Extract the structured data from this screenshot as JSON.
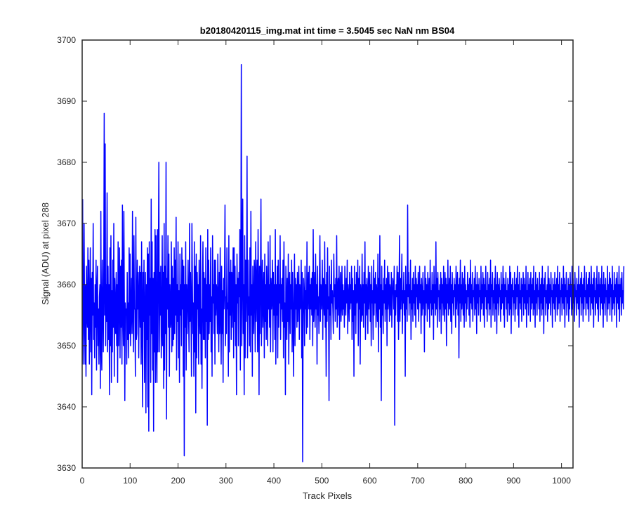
{
  "chart_data": {
    "type": "line",
    "title": "b20180420115_img.mat int time = 3.5045 sec  NaN nm BS04",
    "xlabel": "Track Pixels",
    "ylabel": "Signal (ADU) at pixel 288",
    "xlim": [
      0,
      1024
    ],
    "ylim": [
      3630,
      3700
    ],
    "xticks": [
      0,
      100,
      200,
      300,
      400,
      500,
      600,
      700,
      800,
      900,
      1000
    ],
    "yticks": [
      3630,
      3640,
      3650,
      3660,
      3670,
      3680,
      3690,
      3700
    ],
    "grid": false,
    "legend": "none",
    "series": [
      {
        "color": "#0000ff",
        "x_start": 1,
        "x_step": 1,
        "values": [
          3674,
          3647,
          3652,
          3670,
          3656,
          3647,
          3660,
          3645,
          3663,
          3655,
          3653,
          3666,
          3651,
          3664,
          3647,
          3656,
          3666,
          3649,
          3661,
          3642,
          3662,
          3655,
          3670,
          3651,
          3657,
          3648,
          3660,
          3653,
          3664,
          3646,
          3659,
          3663,
          3650,
          3656,
          3647,
          3658,
          3660,
          3643,
          3672,
          3650,
          3646,
          3664,
          3658,
          3649,
          3660,
          3688,
          3655,
          3683,
          3650,
          3660,
          3654,
          3675,
          3649,
          3663,
          3651,
          3660,
          3642,
          3666,
          3650,
          3668,
          3644,
          3659,
          3649,
          3664,
          3653,
          3670,
          3645,
          3661,
          3656,
          3652,
          3662,
          3650,
          3660,
          3644,
          3667,
          3650,
          3658,
          3666,
          3648,
          3663,
          3653,
          3664,
          3647,
          3673,
          3656,
          3650,
          3672,
          3658,
          3641,
          3657,
          3655,
          3656,
          3647,
          3662,
          3651,
          3657,
          3648,
          3666,
          3652,
          3665,
          3650,
          3656,
          3661,
          3652,
          3672,
          3656,
          3649,
          3668,
          3656,
          3656,
          3645,
          3671,
          3651,
          3652,
          3664,
          3656,
          3662,
          3648,
          3658,
          3663,
          3653,
          3662,
          3647,
          3667,
          3655,
          3640,
          3662,
          3654,
          3664,
          3644,
          3654,
          3662,
          3639,
          3660,
          3651,
          3666,
          3640,
          3665,
          3636,
          3667,
          3655,
          3661,
          3644,
          3674,
          3652,
          3667,
          3646,
          3661,
          3636,
          3662,
          3649,
          3669,
          3644,
          3668,
          3651,
          3644,
          3669,
          3649,
          3664,
          3680,
          3649,
          3662,
          3655,
          3663,
          3648,
          3653,
          3668,
          3650,
          3662,
          3643,
          3670,
          3646,
          3663,
          3652,
          3680,
          3638,
          3661,
          3656,
          3668,
          3653,
          3665,
          3645,
          3660,
          3653,
          3654,
          3667,
          3649,
          3663,
          3650,
          3661,
          3651,
          3666,
          3652,
          3664,
          3655,
          3671,
          3646,
          3660,
          3654,
          3667,
          3648,
          3659,
          3644,
          3665,
          3655,
          3660,
          3650,
          3666,
          3656,
          3664,
          3645,
          3663,
          3632,
          3660,
          3653,
          3667,
          3646,
          3660,
          3652,
          3657,
          3664,
          3655,
          3649,
          3670,
          3654,
          3662,
          3656,
          3645,
          3670,
          3660,
          3652,
          3657,
          3645,
          3667,
          3649,
          3663,
          3639,
          3665,
          3648,
          3662,
          3656,
          3660,
          3647,
          3664,
          3655,
          3652,
          3668,
          3647,
          3656,
          3643,
          3661,
          3667,
          3651,
          3662,
          3651,
          3661,
          3648,
          3666,
          3654,
          3660,
          3637,
          3669,
          3651,
          3664,
          3652,
          3660,
          3654,
          3666,
          3649,
          3658,
          3645,
          3668,
          3657,
          3660,
          3652,
          3664,
          3647,
          3664,
          3655,
          3660,
          3659,
          3652,
          3665,
          3656,
          3649,
          3662,
          3652,
          3666,
          3656,
          3647,
          3663,
          3652,
          3659,
          3644,
          3661,
          3656,
          3661,
          3673,
          3650,
          3658,
          3652,
          3666,
          3656,
          3657,
          3645,
          3668,
          3649,
          3662,
          3655,
          3664,
          3651,
          3662,
          3653,
          3660,
          3666,
          3648,
          3666,
          3654,
          3663,
          3650,
          3660,
          3642,
          3665,
          3657,
          3661,
          3650,
          3662,
          3658,
          3669,
          3646,
          3661,
          3696,
          3650,
          3664,
          3674,
          3652,
          3660,
          3642,
          3668,
          3648,
          3664,
          3654,
          3660,
          3681,
          3648,
          3664,
          3655,
          3658,
          3650,
          3666,
          3649,
          3672,
          3655,
          3660,
          3645,
          3663,
          3657,
          3652,
          3664,
          3662,
          3649,
          3667,
          3654,
          3660,
          3664,
          3649,
          3669,
          3659,
          3642,
          3663,
          3652,
          3661,
          3674,
          3650,
          3658,
          3664,
          3653,
          3659,
          3662,
          3648,
          3665,
          3654,
          3660,
          3651,
          3663,
          3657,
          3650,
          3667,
          3656,
          3660,
          3653,
          3668,
          3649,
          3661,
          3656,
          3658,
          3664,
          3649,
          3662,
          3655,
          3660,
          3651,
          3669,
          3647,
          3660,
          3655,
          3663,
          3648,
          3664,
          3653,
          3660,
          3657,
          3668,
          3651,
          3660,
          3656,
          3661,
          3654,
          3664,
          3648,
          3667,
          3653,
          3657,
          3642,
          3663,
          3658,
          3651,
          3661,
          3654,
          3665,
          3647,
          3659,
          3662,
          3652,
          3660,
          3656,
          3664,
          3649,
          3662,
          3655,
          3645,
          3658,
          3665,
          3650,
          3661,
          3656,
          3660,
          3653,
          3662,
          3654,
          3659,
          3663,
          3651,
          3660,
          3656,
          3657,
          3664,
          3648,
          3662,
          3631,
          3655,
          3661,
          3658,
          3650,
          3663,
          3656,
          3659,
          3652,
          3667,
          3653,
          3659,
          3662,
          3656,
          3663,
          3651,
          3660,
          3656,
          3661,
          3655,
          3662,
          3650,
          3669,
          3654,
          3658,
          3662,
          3653,
          3665,
          3656,
          3660,
          3647,
          3663,
          3655,
          3658,
          3652,
          3661,
          3668,
          3654,
          3660,
          3656,
          3658,
          3664,
          3651,
          3661,
          3659,
          3655,
          3667,
          3653,
          3660,
          3645,
          3662,
          3654,
          3666,
          3656,
          3658,
          3641,
          3663,
          3655,
          3660,
          3651,
          3664,
          3657,
          3659,
          3656,
          3652,
          3665,
          3658,
          3660,
          3654,
          3661,
          3656,
          3668,
          3653,
          3659,
          3661,
          3655,
          3663,
          3651,
          3660,
          3662,
          3654,
          3657,
          3663,
          3655,
          3660,
          3656,
          3659,
          3653,
          3663,
          3658,
          3655,
          3661,
          3657,
          3664,
          3652,
          3660,
          3658,
          3654,
          3662,
          3656,
          3660,
          3657,
          3663,
          3651,
          3661,
          3654,
          3659,
          3645,
          3663,
          3655,
          3660,
          3652,
          3662,
          3657,
          3658,
          3664,
          3650,
          3661,
          3656,
          3663,
          3647,
          3660,
          3658,
          3654,
          3665,
          3655,
          3660,
          3653,
          3662,
          3657,
          3667,
          3651,
          3660,
          3655,
          3661,
          3658,
          3652,
          3663,
          3656,
          3659,
          3662,
          3654,
          3660,
          3650,
          3663,
          3657,
          3659,
          3651,
          3664,
          3655,
          3661,
          3657,
          3662,
          3653,
          3660,
          3658,
          3654,
          3665,
          3649,
          3661,
          3656,
          3668,
          3653,
          3660,
          3641,
          3663,
          3655,
          3659,
          3652,
          3661,
          3657,
          3664,
          3654,
          3660,
          3656,
          3661,
          3650,
          3663,
          3656,
          3658,
          3662,
          3654,
          3660,
          3659,
          3655,
          3662,
          3653,
          3658,
          3661,
          3660,
          3656,
          3663,
          3637,
          3659,
          3655,
          3660,
          3658,
          3663,
          3654,
          3662,
          3651,
          3657,
          3668,
          3654,
          3661,
          3656,
          3660,
          3665,
          3652,
          3659,
          3657,
          3662,
          3655,
          3659,
          3645,
          3663,
          3656,
          3660,
          3654,
          3673,
          3658,
          3662,
          3655,
          3660,
          3657,
          3664,
          3651,
          3659,
          3656,
          3661,
          3654,
          3662,
          3657,
          3660,
          3655,
          3663,
          3653,
          3661,
          3658,
          3660,
          3656,
          3662,
          3654,
          3659,
          3663,
          3657,
          3660,
          3652,
          3661,
          3655,
          3658,
          3662,
          3656,
          3659,
          3649,
          3663,
          3655,
          3661,
          3657,
          3660,
          3654,
          3662,
          3658,
          3656,
          3661,
          3653,
          3664,
          3657,
          3659,
          3655,
          3662,
          3656,
          3660,
          3651,
          3663,
          3657,
          3660,
          3655,
          3667,
          3656,
          3661,
          3653,
          3662,
          3658,
          3659,
          3654,
          3660,
          3656,
          3662,
          3652,
          3661,
          3657,
          3660,
          3655,
          3663,
          3658,
          3654,
          3662,
          3656,
          3661,
          3650,
          3660,
          3657,
          3664,
          3655,
          3658,
          3661,
          3656,
          3663,
          3654,
          3660,
          3652,
          3662,
          3657,
          3659,
          3655,
          3661,
          3658,
          3660,
          3653,
          3663,
          3656,
          3659,
          3662,
          3655,
          3660,
          3648,
          3661,
          3657,
          3664,
          3654,
          3660,
          3656,
          3662,
          3658,
          3655,
          3661,
          3653,
          3663,
          3657,
          3660,
          3654,
          3659,
          3656,
          3662,
          3658,
          3660,
          3655,
          3661,
          3653,
          3664,
          3657,
          3660,
          3656,
          3662,
          3654,
          3659,
          3658,
          3661,
          3655,
          3663,
          3656,
          3660,
          3652,
          3662,
          3657,
          3660,
          3655,
          3661,
          3658,
          3659,
          3654,
          3663,
          3656,
          3660,
          3657,
          3662,
          3655,
          3661,
          3653,
          3660,
          3658,
          3663,
          3656,
          3659,
          3654,
          3662,
          3657,
          3660,
          3655,
          3661,
          3656,
          3664,
          3653,
          3660,
          3658,
          3662,
          3655,
          3659,
          3657,
          3661,
          3654,
          3663,
          3656,
          3660,
          3652,
          3662,
          3657,
          3660,
          3655,
          3661,
          3658,
          3659,
          3654,
          3662,
          3656,
          3660,
          3657,
          3663,
          3655,
          3661,
          3653,
          3660,
          3658,
          3662,
          3656,
          3659,
          3654,
          3661,
          3657,
          3660,
          3655,
          3663,
          3656,
          3662,
          3652,
          3660,
          3658,
          3661,
          3655,
          3659,
          3657,
          3662,
          3654,
          3660,
          3656,
          3661,
          3658,
          3663,
          3655,
          3660,
          3653,
          3662,
          3657,
          3659,
          3656,
          3661,
          3654,
          3660,
          3658,
          3662,
          3655,
          3661,
          3657,
          3660,
          3656,
          3663,
          3653,
          3659,
          3657,
          3662,
          3655,
          3660,
          3658,
          3661,
          3654,
          3662,
          3656,
          3660,
          3657,
          3661,
          3655,
          3663,
          3656,
          3659,
          3653,
          3662,
          3657,
          3660,
          3655,
          3661,
          3658,
          3659,
          3656,
          3662,
          3654,
          3660,
          3657,
          3661,
          3655,
          3663,
          3656,
          3660,
          3652,
          3661,
          3658,
          3662,
          3655,
          3659,
          3657,
          3660,
          3654,
          3663,
          3656,
          3661,
          3657,
          3660,
          3655,
          3662,
          3658,
          3659,
          3653,
          3661,
          3657,
          3660,
          3656,
          3662,
          3654,
          3660,
          3658,
          3661,
          3655,
          3663,
          3656,
          3660,
          3657,
          3662,
          3654,
          3659,
          3658,
          3661,
          3655,
          3660,
          3657,
          3663,
          3656,
          3661,
          3653,
          3660,
          3658,
          3662,
          3655,
          3659,
          3657,
          3661,
          3654,
          3660,
          3656,
          3662,
          3658,
          3660,
          3655,
          3663,
          3656,
          3661,
          3657,
          3660,
          3654,
          3662,
          3658,
          3659,
          3655,
          3661,
          3657,
          3660,
          3656,
          3663,
          3653,
          3660,
          3658,
          3661,
          3655,
          3662,
          3657,
          3660,
          3654,
          3661,
          3656,
          3663,
          3658,
          3659,
          3655,
          3662,
          3657,
          3660,
          3656,
          3661,
          3654,
          3662,
          3658,
          3660,
          3655,
          3663,
          3657,
          3660,
          3656,
          3661,
          3653,
          3662,
          3658,
          3659,
          3655,
          3661,
          3657,
          3663,
          3656,
          3660,
          3654,
          3662,
          3658,
          3660,
          3655,
          3661,
          3657,
          3663,
          3656,
          3660,
          3653,
          3662,
          3657,
          3660,
          3655,
          3661,
          3658,
          3659,
          3654,
          3663,
          3656,
          3660,
          3657,
          3662,
          3655,
          3661,
          3658,
          3660,
          3654,
          3663,
          3656,
          3659,
          3657,
          3662,
          3655,
          3660,
          3658,
          3661,
          3653,
          3662,
          3657,
          3660,
          3656,
          3663,
          3654,
          3660,
          3658,
          3661,
          3655,
          3662,
          3657,
          3659,
          3656,
          3663
        ]
      }
    ]
  }
}
